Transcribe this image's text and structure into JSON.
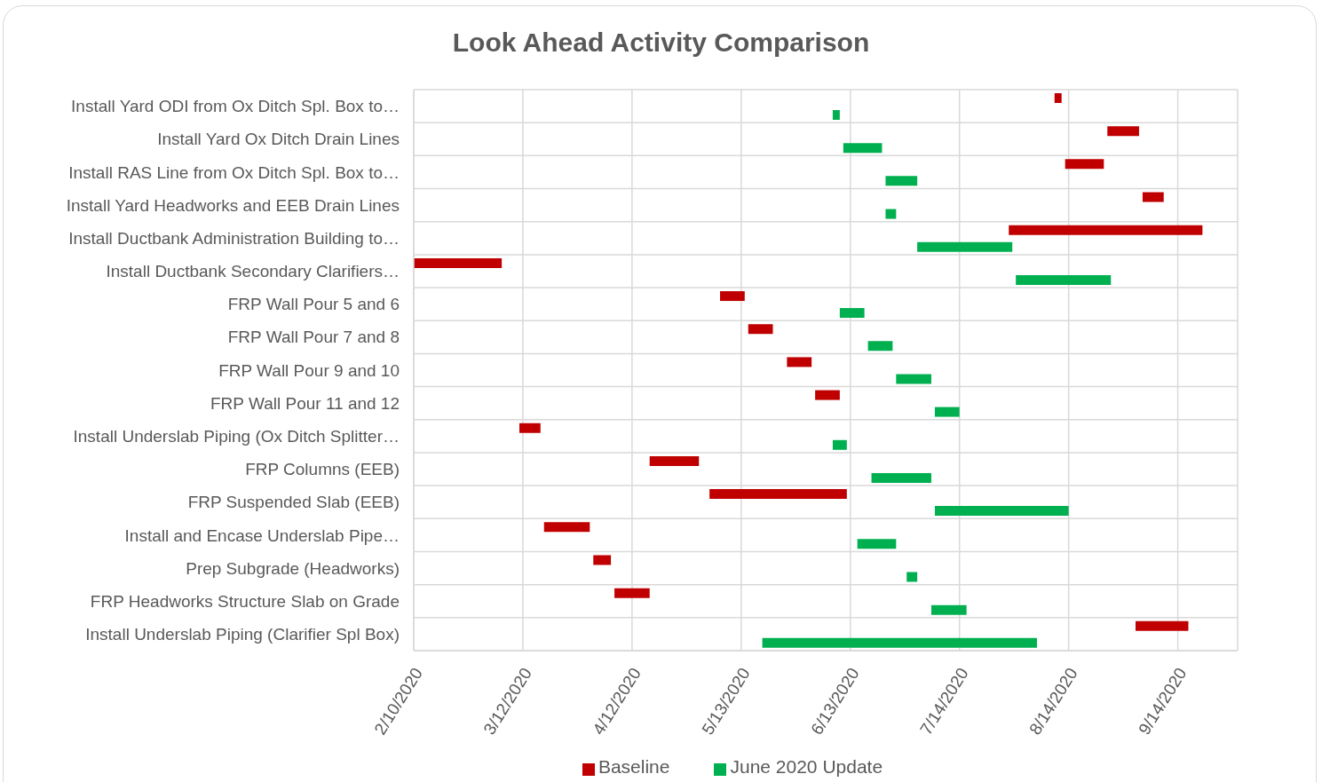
{
  "chart_data": {
    "type": "bar",
    "orientation": "horizontal",
    "title": "Look Ahead Activity Comparison",
    "categories": [
      "Install Yard ODI from Ox Ditch Spl. Box to…",
      "Install Yard Ox Ditch Drain Lines",
      "Install RAS Line from Ox Ditch Spl. Box to…",
      "Install Yard Headworks and EEB Drain Lines",
      "Install Ductbank Administration Building to…",
      "Install Ductbank Secondary Clarifiers…",
      "FRP Wall Pour 5 and 6",
      "FRP Wall Pour 7 and 8",
      "FRP Wall Pour 9 and 10",
      "FRP Wall Pour 11 and 12",
      "Install Underslab Piping (Ox Ditch Splitter…",
      "FRP Columns (EEB)",
      "FRP Suspended Slab (EEB)",
      "Install and Encase Underslab Pipe…",
      "Prep Subgrade (Headworks)",
      "FRP Headworks Structure Slab on Grade",
      "Install Underslab Piping (Clarifier Spl Box)"
    ],
    "series": [
      {
        "name": "Baseline",
        "color": "#c00000",
        "base": [
          18484,
          18499,
          18487,
          18509,
          18471,
          18302,
          18389,
          18397,
          18408,
          18416,
          18332,
          18369,
          18386,
          18339,
          18353,
          18359,
          18507
        ],
        "values": [
          2,
          9,
          11,
          6,
          55,
          25,
          7,
          7,
          7,
          7,
          6,
          14,
          39,
          13,
          5,
          10,
          15
        ]
      },
      {
        "name": "June 2020 Update",
        "color": "#00b050",
        "base": [
          18421,
          18424,
          18436,
          18436,
          18445,
          18473,
          18423,
          18431,
          18439,
          18450,
          18421,
          18432,
          18450,
          18428,
          18442,
          18449,
          18401
        ],
        "values": [
          2,
          11,
          9,
          3,
          27,
          27,
          7,
          7,
          10,
          7,
          4,
          17,
          38,
          11,
          3,
          10,
          78
        ]
      }
    ],
    "xlim": [
      "2020-02-10",
      "2020-10-01"
    ],
    "xticks": [
      {
        "value": "2020-02-10",
        "label": "2/10/2020"
      },
      {
        "value": "2020-03-12",
        "label": "3/12/2020"
      },
      {
        "value": "2020-04-12",
        "label": "4/12/2020"
      },
      {
        "value": "2020-05-13",
        "label": "5/13/2020"
      },
      {
        "value": "2020-06-13",
        "label": "6/13/2020"
      },
      {
        "value": "2020-07-14",
        "label": "7/14/2020"
      },
      {
        "value": "2020-08-14",
        "label": "8/14/2020"
      },
      {
        "value": "2020-09-14",
        "label": "9/14/2020"
      }
    ],
    "grid": true,
    "legend": "bottom"
  }
}
